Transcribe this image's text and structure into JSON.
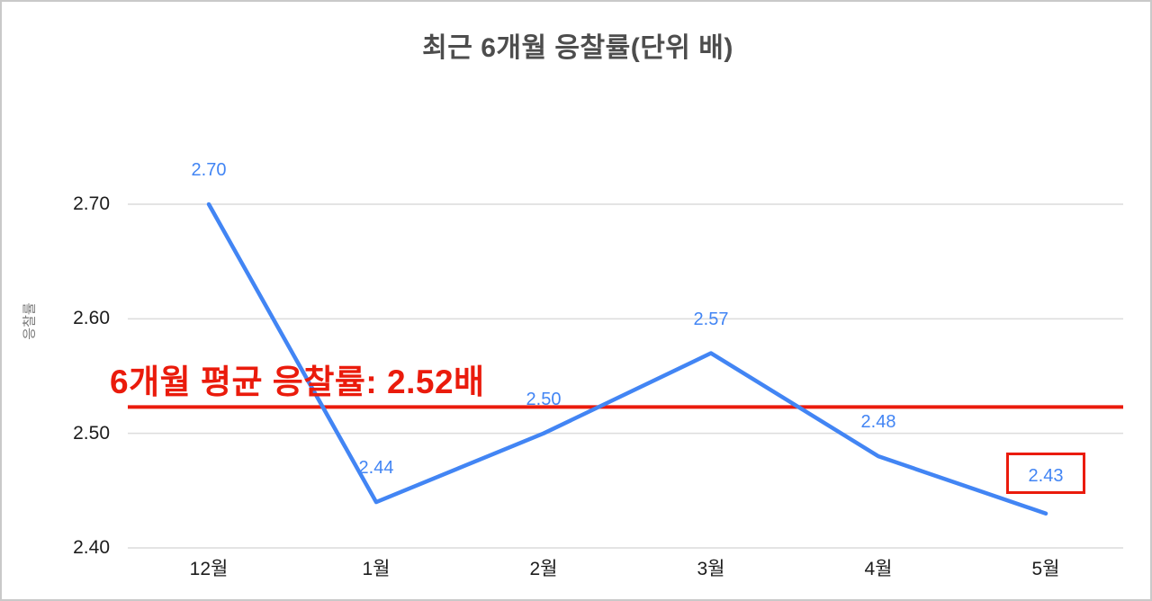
{
  "chart_data": {
    "type": "line",
    "title": "최근 6개월 응찰률(단위 배)",
    "ylabel": "응찰률",
    "xlabel": "",
    "categories": [
      "12월",
      "1월",
      "2월",
      "3월",
      "4월",
      "5월"
    ],
    "values": [
      2.7,
      2.44,
      2.5,
      2.57,
      2.48,
      2.43
    ],
    "point_labels": [
      "2.70",
      "2.44",
      "2.50",
      "2.57",
      "2.48",
      "2.43"
    ],
    "yticks": [
      "2.70",
      "2.60",
      "2.50",
      "2.40"
    ],
    "ylim": [
      2.4,
      2.7
    ],
    "grid": true,
    "legend": "none",
    "line_color": "#4285f4",
    "label_color": "#4285f4",
    "grid_color": "#dcdcdc",
    "average_line": {
      "value": 2.523,
      "label": "6개월 평균 응찰률: 2.52배",
      "color": "#ea1b0c"
    },
    "highlight_last_point": true
  }
}
